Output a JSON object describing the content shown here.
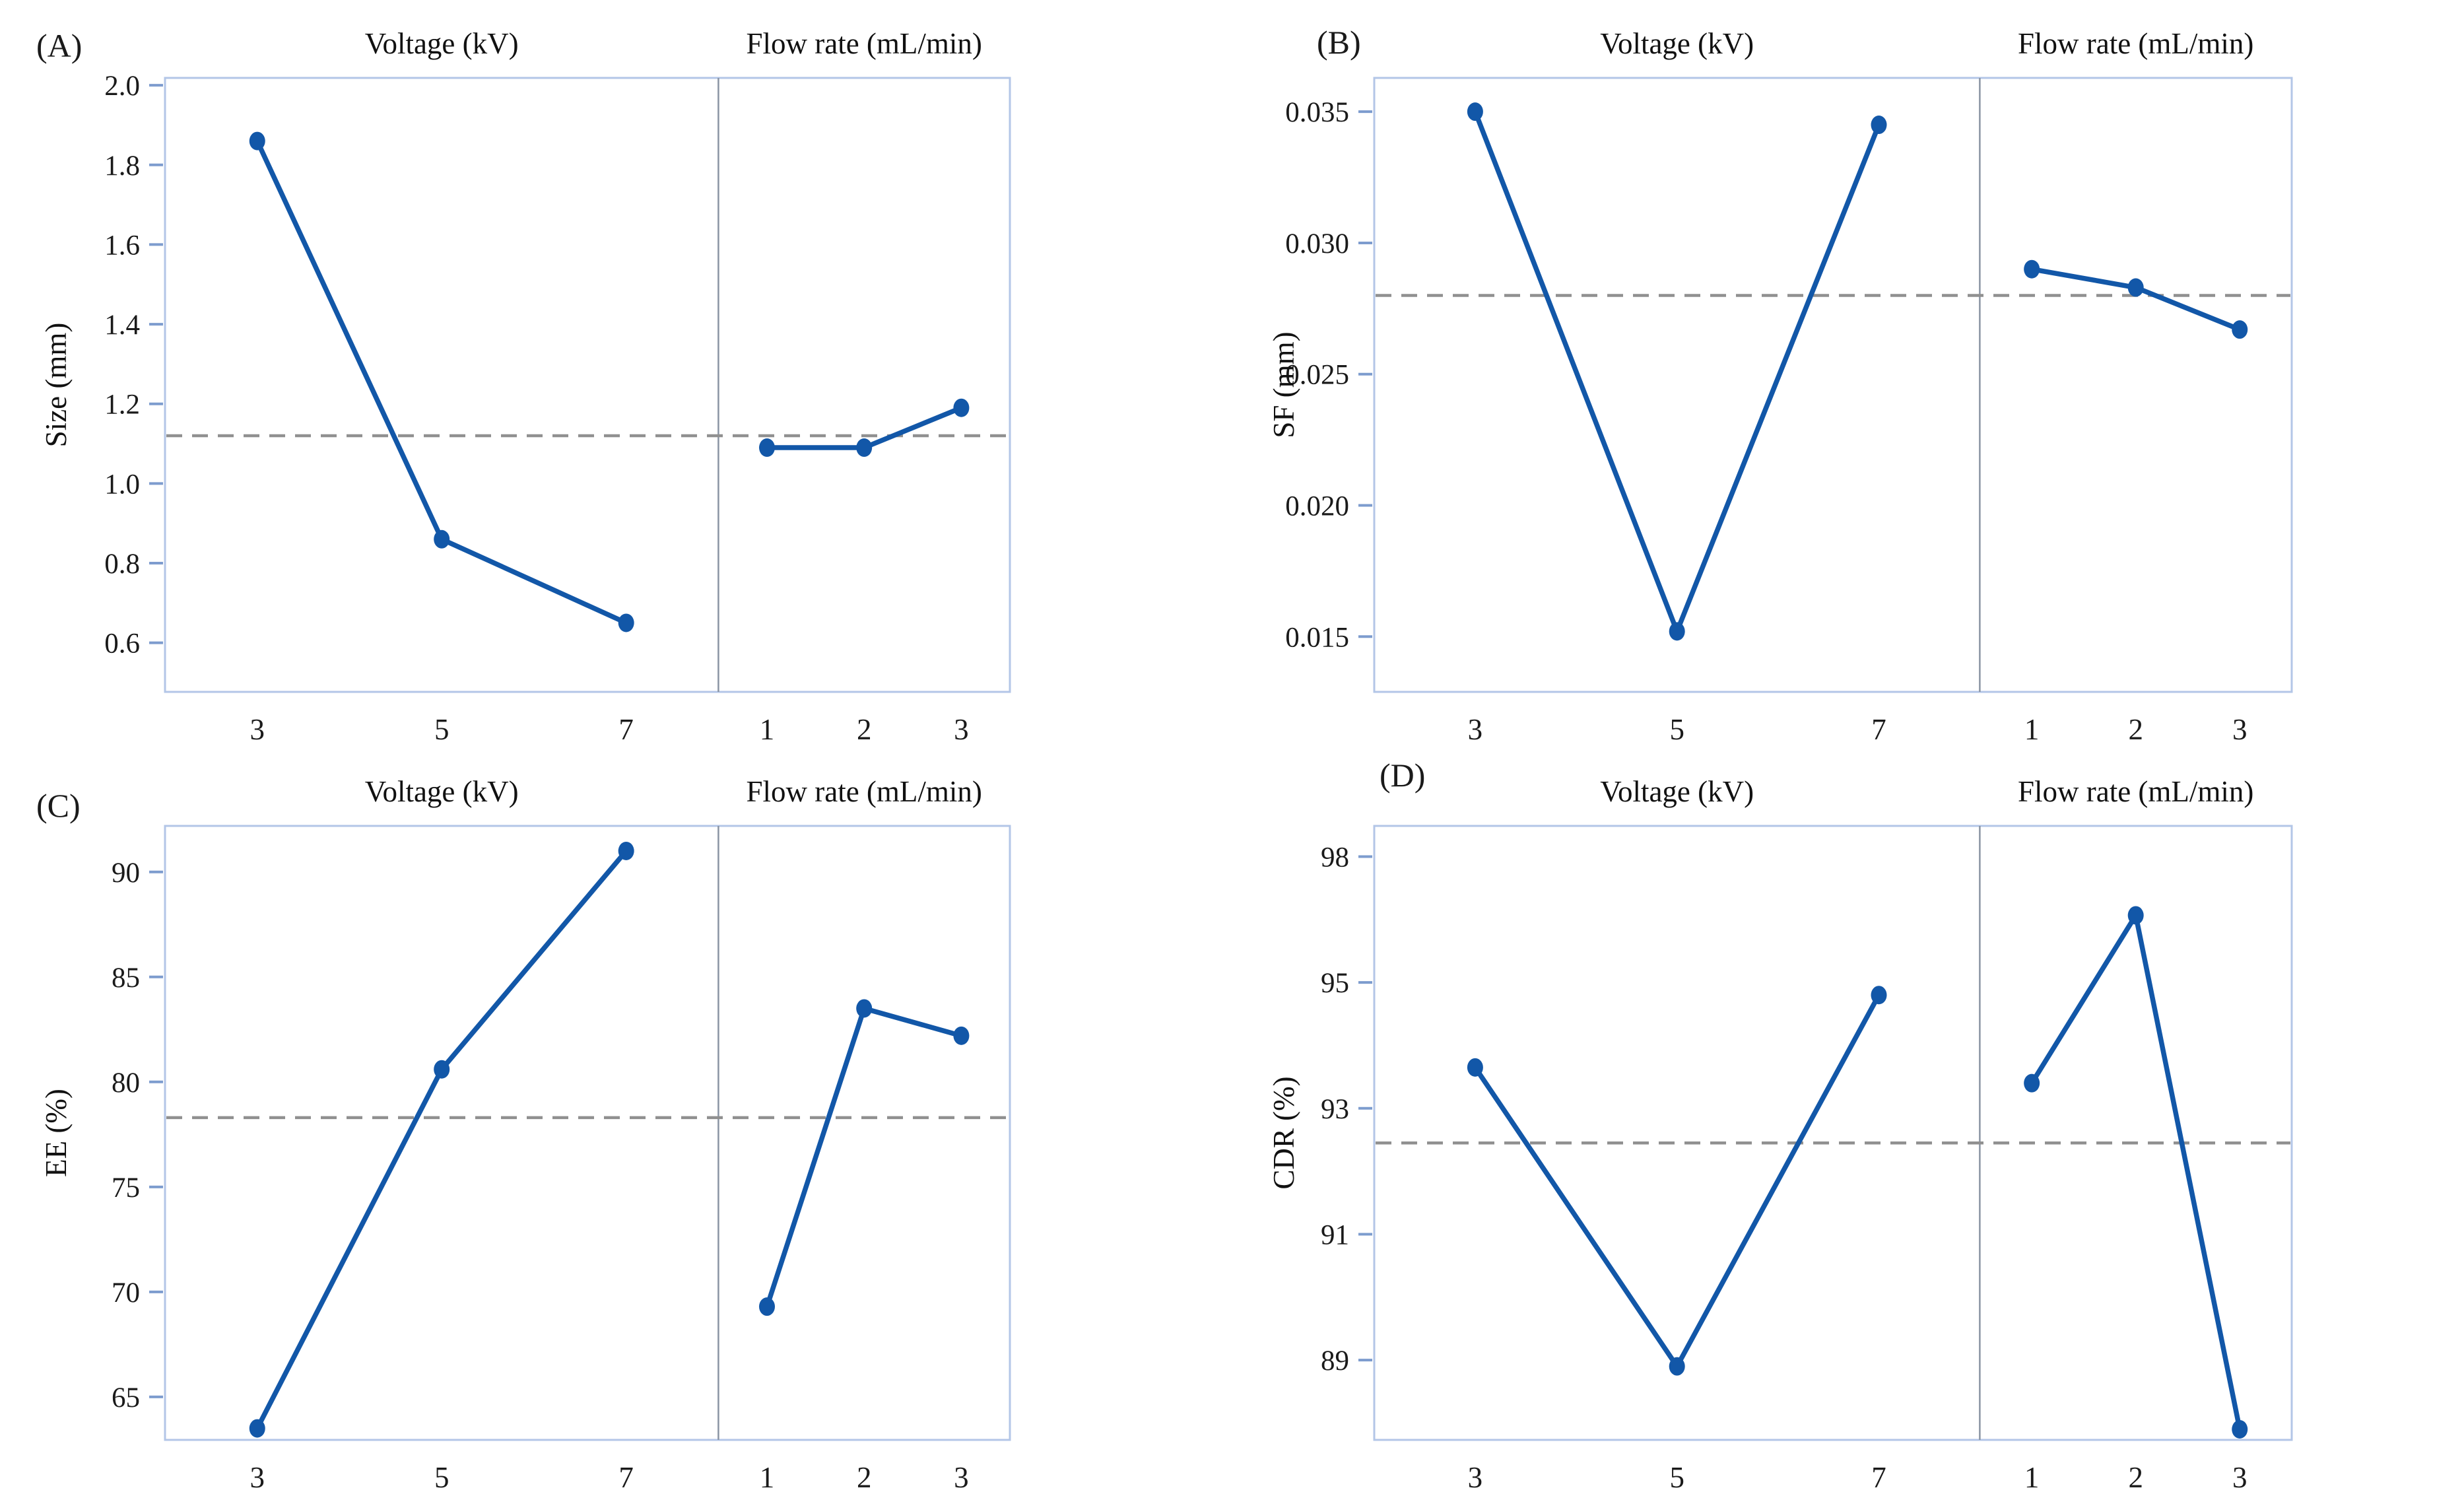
{
  "colors": {
    "line": "#1257a8",
    "marker": "#1257a8",
    "panel_border": "#b3c6e7",
    "section_divider": "#8a94a3",
    "mean_dash": "#909090",
    "tick_mark": "#7d9cce",
    "text": "#1a1a1a"
  },
  "chart_data": [
    {
      "type": "line",
      "label": "(A)",
      "ylabel": "Size (mm)",
      "ytick_labels": [
        "2.0",
        "1.8",
        "1.6",
        "1.4",
        "1.2",
        "1.0",
        "0.8",
        "0.6"
      ],
      "yticks": [
        2.0,
        1.8,
        1.6,
        1.4,
        1.2,
        1.0,
        0.8,
        0.6
      ],
      "ylim": [
        0.47,
        2.02
      ],
      "mean_line": 1.12,
      "grid": "off",
      "sections": [
        {
          "title": "Voltage (kV)",
          "xticks": [
            "3",
            "5",
            "7"
          ],
          "x": [
            3,
            5,
            7
          ],
          "values": [
            1.86,
            0.86,
            0.65
          ]
        },
        {
          "title": "Flow rate (mL/min)",
          "xticks": [
            "1",
            "2",
            "3"
          ],
          "x": [
            1,
            2,
            3
          ],
          "values": [
            1.09,
            1.09,
            1.19
          ]
        }
      ]
    },
    {
      "type": "line",
      "label": "(B)",
      "ylabel": "SF (mm)",
      "ytick_labels": [
        "0.035",
        "0.030",
        "0.025",
        "0.020",
        "0.015"
      ],
      "yticks": [
        0.035,
        0.03,
        0.025,
        0.02,
        0.015
      ],
      "ylim": [
        0.0137,
        0.0362
      ],
      "mean_line": 0.028,
      "grid": "off",
      "sections": [
        {
          "title": "Voltage (kV)",
          "xticks": [
            "3",
            "5",
            "7"
          ],
          "x": [
            3,
            5,
            7
          ],
          "values": [
            0.035,
            0.0152,
            0.0345
          ]
        },
        {
          "title": "Flow rate (mL/min)",
          "xticks": [
            "1",
            "2",
            "3"
          ],
          "x": [
            1,
            2,
            3
          ],
          "values": [
            0.029,
            0.0283,
            0.0267
          ]
        }
      ]
    },
    {
      "type": "line",
      "label": "(C)",
      "ylabel": "EE (%)",
      "ytick_labels": [
        "90",
        "85",
        "80",
        "75",
        "70",
        "65"
      ],
      "yticks": [
        90,
        85,
        80,
        75,
        70,
        65
      ],
      "ylim": [
        62.8,
        92.4
      ],
      "mean_line": 78.3,
      "grid": "off",
      "sections": [
        {
          "title": "Voltage (kV)",
          "xticks": [
            "3",
            "5",
            "7"
          ],
          "x": [
            3,
            5,
            7
          ],
          "values": [
            63.5,
            80.6,
            91.0
          ]
        },
        {
          "title": "Flow rate (mL/min)",
          "xticks": [
            "1",
            "2",
            "3"
          ],
          "x": [
            1,
            2,
            3
          ],
          "values": [
            69.3,
            83.5,
            82.2
          ]
        }
      ]
    },
    {
      "type": "line",
      "label": "(D)",
      "ylabel": "CDR (%)",
      "ytick_labels": [
        "98",
        "95",
        "93",
        "91",
        "89"
      ],
      "yticks": [
        98,
        95,
        93,
        91,
        89
      ],
      "ylim": [
        87.7,
        98.8
      ],
      "mean_line": 92.45,
      "grid": "off",
      "sections": [
        {
          "title": "Voltage (kV)",
          "xticks": [
            "3",
            "5",
            "7"
          ],
          "x": [
            3,
            5,
            7
          ],
          "values": [
            93.65,
            88.9,
            94.8
          ]
        },
        {
          "title": "Flow rate (mL/min)",
          "xticks": [
            "1",
            "2",
            "3"
          ],
          "x": [
            1,
            2,
            3
          ],
          "values": [
            93.4,
            96.6,
            87.9
          ]
        }
      ]
    }
  ]
}
